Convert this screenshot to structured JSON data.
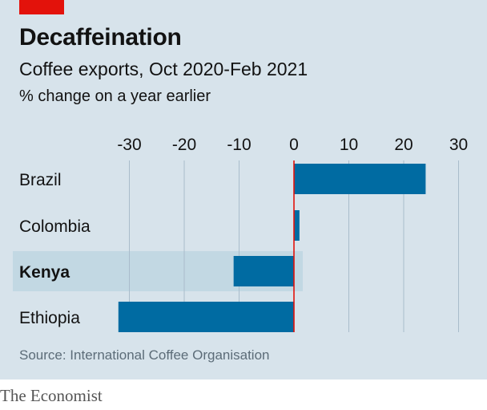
{
  "header": {
    "title": "Decaffeination",
    "subtitle": "Coffee exports, Oct 2020-Feb 2021",
    "unit": "% change on a year earlier"
  },
  "source": "Source: International Coffee Organisation",
  "footer": "The Economist",
  "colors": {
    "background": "#d7e3eb",
    "bar": "#006ba2",
    "zero_line": "#e3120b",
    "highlight_band": "#c2d8e3",
    "brand_red": "#e3120b"
  },
  "chart_data": {
    "type": "bar",
    "orientation": "horizontal",
    "categories": [
      "Brazil",
      "Colombia",
      "Kenya",
      "Ethiopia"
    ],
    "values": [
      24,
      1,
      -11,
      -32
    ],
    "highlight": "Kenya",
    "xlim": [
      -33,
      31
    ],
    "xticks": [
      -30,
      -20,
      -10,
      0,
      10,
      20,
      30
    ],
    "xtick_labels": [
      "-30",
      "-20",
      "-10",
      "0",
      "10",
      "20",
      "30"
    ],
    "grid": true,
    "tick_position": "top"
  }
}
